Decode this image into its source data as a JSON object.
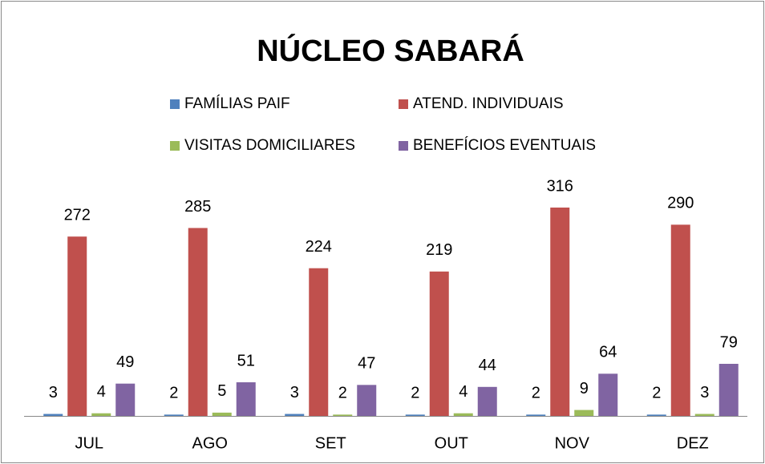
{
  "chart_data": {
    "type": "bar",
    "title": "NÚCLEO SABARÁ",
    "categories": [
      "JUL",
      "AGO",
      "SET",
      "OUT",
      "NOV",
      "DEZ"
    ],
    "series": [
      {
        "name": "FAMÍLIAS PAIF",
        "color": "#4f81bd",
        "values": [
          3,
          2,
          3,
          2,
          2,
          2
        ]
      },
      {
        "name": "ATEND. INDIVIDUAIS",
        "color": "#c0504d",
        "values": [
          272,
          285,
          224,
          219,
          316,
          290
        ]
      },
      {
        "name": "VISITAS DOMICILIARES",
        "color": "#9bbb59",
        "values": [
          4,
          5,
          2,
          4,
          9,
          3
        ]
      },
      {
        "name": "BENEFÍCIOS EVENTUAIS",
        "color": "#8064a2",
        "values": [
          49,
          51,
          47,
          44,
          64,
          79
        ]
      }
    ]
  }
}
